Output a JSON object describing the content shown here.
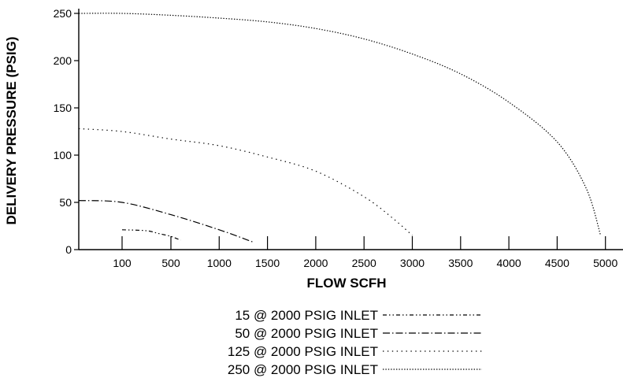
{
  "chart_data": {
    "type": "line",
    "title": "",
    "xlabel": "FLOW SCFH",
    "ylabel": "DELIVERY PRESSURE (PSIG)",
    "ylim": [
      0,
      250
    ],
    "yticks": [
      0,
      50,
      100,
      150,
      200,
      250
    ],
    "xticks": [
      "100",
      "500",
      "1000",
      "1500",
      "2000",
      "2500",
      "3000",
      "3500",
      "4000",
      "4500",
      "5000"
    ],
    "grid": false,
    "legend_position": "bottom",
    "series": [
      {
        "name": "15 @ 2000 PSIG INLET",
        "dash": "dash-dot-dot",
        "points": [
          [
            100,
            21
          ],
          [
            300,
            20
          ],
          [
            400,
            17
          ],
          [
            500,
            14
          ],
          [
            600,
            10
          ]
        ]
      },
      {
        "name": "50 @ 2000 PSIG INLET",
        "dash": "dash-dot",
        "points": [
          [
            0,
            52
          ],
          [
            100,
            50
          ],
          [
            500,
            37
          ],
          [
            1000,
            21
          ],
          [
            1350,
            8
          ]
        ]
      },
      {
        "name": "125 @ 2000 PSIG INLET",
        "dash": "dotted-sparse",
        "points": [
          [
            0,
            128
          ],
          [
            100,
            125
          ],
          [
            500,
            117
          ],
          [
            1000,
            110
          ],
          [
            1500,
            98
          ],
          [
            2000,
            83
          ],
          [
            2500,
            56
          ],
          [
            2800,
            33
          ],
          [
            3000,
            15
          ]
        ]
      },
      {
        "name": "250 @ 2000 PSIG INLET",
        "dash": "dotted-dense",
        "points": [
          [
            0,
            250
          ],
          [
            100,
            250
          ],
          [
            500,
            248
          ],
          [
            1000,
            245
          ],
          [
            1500,
            241
          ],
          [
            2000,
            234
          ],
          [
            2500,
            223
          ],
          [
            3000,
            207
          ],
          [
            3500,
            186
          ],
          [
            4000,
            156
          ],
          [
            4500,
            114
          ],
          [
            4800,
            65
          ],
          [
            4950,
            15
          ]
        ]
      }
    ]
  },
  "legend": {
    "items": [
      "15 @ 2000 PSIG INLET",
      "50 @ 2000 PSIG INLET",
      "125 @ 2000 PSIG INLET",
      "250 @ 2000 PSIG INLET"
    ]
  }
}
